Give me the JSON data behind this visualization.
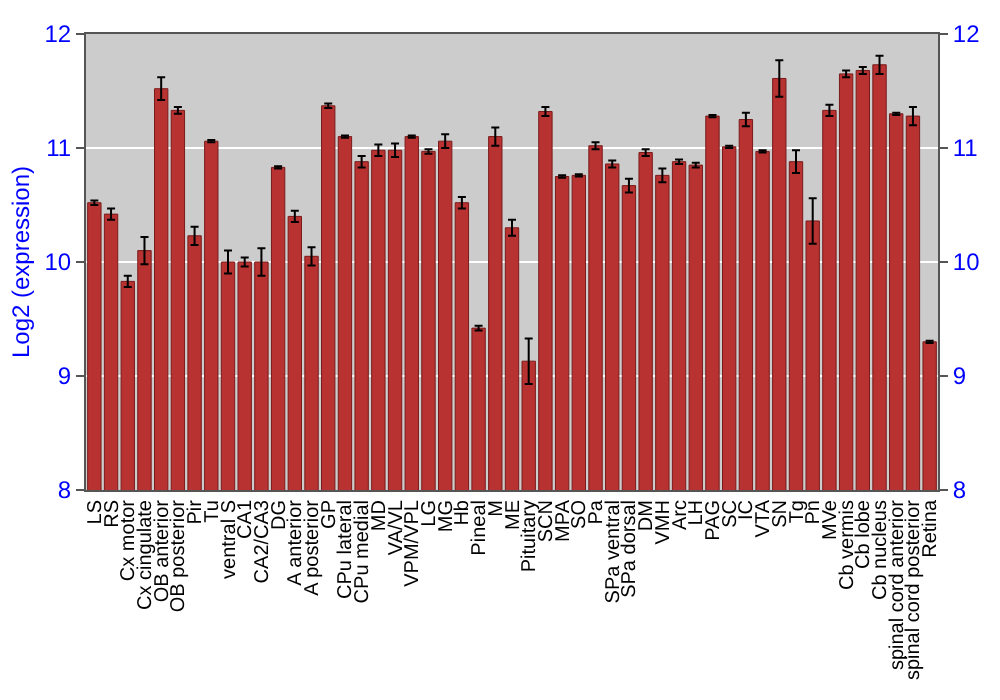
{
  "chart_data": {
    "type": "bar",
    "ylabel": "Log2 (expression)",
    "categories": [
      "LS",
      "RS",
      "Cx motor",
      "Cx cingulate",
      "OB anterior",
      "OB posterior",
      "Pir",
      "Tu",
      "ventral S",
      "CA1",
      "CA2/CA3",
      "DG",
      "A anterior",
      "A posterior",
      "GP",
      "CPu lateral",
      "CPu medial",
      "MD",
      "VA/VL",
      "VPM/VPL",
      "LG",
      "MG",
      "Hb",
      "Pineal",
      "M",
      "ME",
      "Pituitary",
      "SCN",
      "MPA",
      "SO",
      "Pa",
      "SPa ventral",
      "SPa dorsal",
      "DM",
      "VMH",
      "Arc",
      "LH",
      "PAG",
      "SC",
      "IC",
      "VTA",
      "SN",
      "Tg",
      "Pn",
      "MVe",
      "Cb vermis",
      "Cb lobe",
      "Cb nucleus",
      "spinal cord anterior",
      "spinal cord posterior",
      "Retina"
    ],
    "values": [
      10.52,
      10.42,
      9.83,
      10.1,
      11.52,
      11.33,
      10.23,
      11.06,
      10.0,
      10.0,
      10.0,
      10.83,
      10.4,
      10.05,
      11.37,
      11.1,
      10.88,
      10.98,
      10.98,
      11.1,
      10.97,
      11.06,
      10.52,
      9.42,
      11.1,
      10.3,
      9.13,
      11.32,
      10.75,
      10.76,
      11.02,
      10.86,
      10.67,
      10.96,
      10.76,
      10.88,
      10.85,
      11.28,
      11.01,
      11.25,
      10.97,
      11.61,
      10.88,
      10.36,
      11.33,
      11.65,
      11.68,
      11.73,
      11.3,
      11.28,
      9.3
    ],
    "errors": [
      0.02,
      0.05,
      0.05,
      0.12,
      0.1,
      0.03,
      0.08,
      0.01,
      0.1,
      0.04,
      0.12,
      0.01,
      0.05,
      0.08,
      0.02,
      0.01,
      0.05,
      0.05,
      0.06,
      0.01,
      0.02,
      0.06,
      0.05,
      0.02,
      0.08,
      0.07,
      0.2,
      0.04,
      0.01,
      0.01,
      0.03,
      0.03,
      0.06,
      0.03,
      0.06,
      0.02,
      0.02,
      0.01,
      0.01,
      0.06,
      0.01,
      0.16,
      0.1,
      0.2,
      0.05,
      0.03,
      0.03,
      0.08,
      0.01,
      0.08,
      0.01
    ],
    "color": "#b83232",
    "ylim": [
      8,
      12
    ],
    "yticks": [
      8,
      9,
      10,
      11,
      12
    ],
    "y2lim": [
      8,
      12
    ],
    "y2ticks": [
      8,
      9,
      10,
      11,
      12
    ],
    "grid": "y"
  }
}
